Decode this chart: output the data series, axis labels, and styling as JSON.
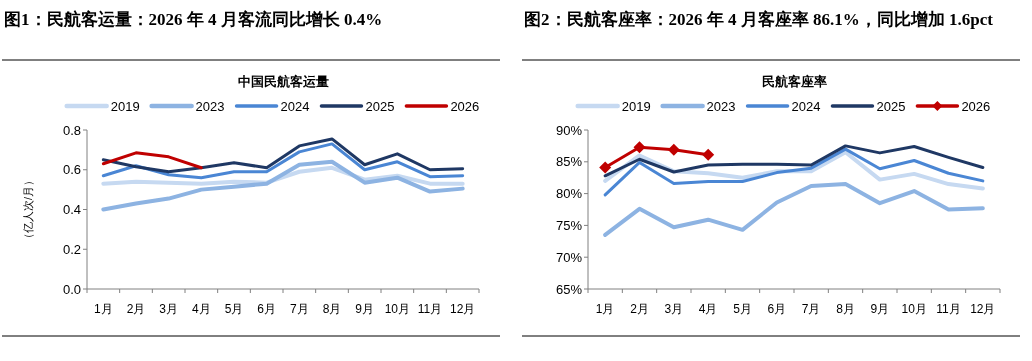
{
  "chart_data": [
    {
      "type": "line",
      "title": "图1：民航客运量：2026 年 4 月客流同比增长 0.4%",
      "subtitle": "中国民航客运量",
      "ylabel": "（亿人次/月）",
      "legend": "top",
      "grid": false,
      "categories": [
        "1月",
        "2月",
        "3月",
        "4月",
        "5月",
        "6月",
        "7月",
        "8月",
        "9月",
        "10月",
        "11月",
        "12月"
      ],
      "ylim": [
        0,
        0.8
      ],
      "yticks": [
        {
          "value": 0,
          "label": "0.0"
        },
        0.2,
        0.4,
        0.6,
        0.8
      ],
      "series": [
        {
          "name": "2019",
          "color": "#c6d9f1",
          "values": [
            0.53,
            0.54,
            0.535,
            0.53,
            0.54,
            0.535,
            0.59,
            0.61,
            0.55,
            0.57,
            0.53,
            0.53
          ]
        },
        {
          "name": "2023",
          "color": "#8db3e2",
          "values": [
            0.4,
            0.43,
            0.455,
            0.5,
            0.515,
            0.53,
            0.625,
            0.64,
            0.535,
            0.56,
            0.49,
            0.505
          ]
        },
        {
          "name": "2024",
          "color": "#4a86d4",
          "values": [
            0.57,
            0.62,
            0.575,
            0.56,
            0.59,
            0.59,
            0.69,
            0.73,
            0.6,
            0.64,
            0.565,
            0.57
          ]
        },
        {
          "name": "2025",
          "color": "#1f3864",
          "values": [
            0.65,
            0.615,
            0.59,
            0.61,
            0.635,
            0.61,
            0.72,
            0.755,
            0.625,
            0.68,
            0.6,
            0.605
          ]
        },
        {
          "name": "2026",
          "color": "#c00000",
          "values": [
            0.63,
            0.685,
            0.665,
            0.61,
            null,
            null,
            null,
            null,
            null,
            null,
            null,
            null
          ]
        }
      ]
    },
    {
      "type": "line",
      "title": "图2：民航客座率：2026 年 4 月客座率 86.1%，同比增加 1.6pct",
      "subtitle": "民航客座率",
      "legend": "top",
      "grid": false,
      "categories": [
        "1月",
        "2月",
        "3月",
        "4月",
        "5月",
        "6月",
        "7月",
        "8月",
        "9月",
        "10月",
        "11月",
        "12月"
      ],
      "ylim": [
        65,
        90
      ],
      "yticks": [
        {
          "value": 65,
          "label": "65%"
        },
        {
          "value": 70,
          "label": "70%"
        },
        {
          "value": 75,
          "label": "75%"
        },
        {
          "value": 80,
          "label": "80%"
        },
        {
          "value": 85,
          "label": "85%"
        },
        {
          "value": 90,
          "label": "90%"
        }
      ],
      "series": [
        {
          "name": "2019",
          "color": "#c6d9f1",
          "values": [
            82.0,
            86.0,
            83.5,
            83.2,
            82.5,
            83.5,
            83.5,
            86.5,
            82.2,
            83.1,
            81.5,
            80.8
          ]
        },
        {
          "name": "2023",
          "color": "#8db3e2",
          "values": [
            73.5,
            77.6,
            74.7,
            75.9,
            74.3,
            78.6,
            81.2,
            81.5,
            78.5,
            80.4,
            77.5,
            77.7
          ]
        },
        {
          "name": "2024",
          "color": "#4a86d4",
          "values": [
            79.8,
            84.9,
            81.6,
            81.9,
            81.9,
            83.3,
            84.0,
            87.0,
            83.9,
            85.2,
            83.2,
            82.0
          ]
        },
        {
          "name": "2025",
          "color": "#1f3864",
          "values": [
            82.8,
            85.4,
            83.4,
            84.5,
            84.6,
            84.6,
            84.5,
            87.5,
            86.4,
            87.4,
            85.7,
            84.1
          ]
        },
        {
          "name": "2026",
          "color": "#c00000",
          "marker": "diamond",
          "values": [
            84.1,
            87.3,
            86.9,
            86.1,
            null,
            null,
            null,
            null,
            null,
            null,
            null,
            null
          ]
        }
      ]
    }
  ]
}
